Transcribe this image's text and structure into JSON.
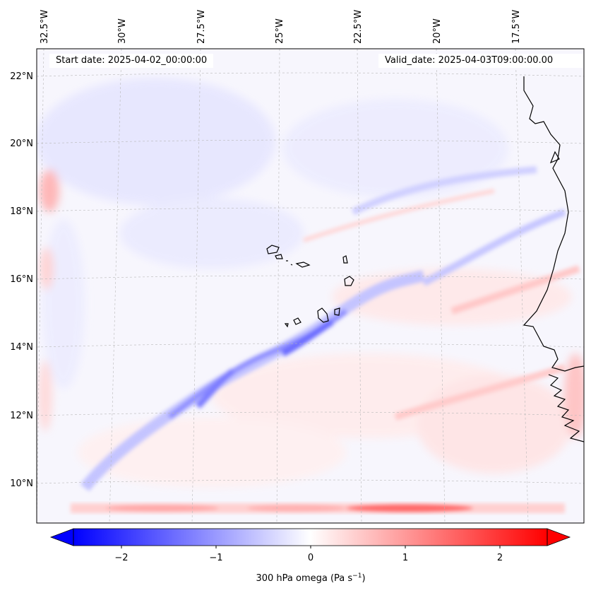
{
  "header": {
    "start_date": "Start date: 2025-04-02_00:00:00",
    "valid_date": "Valid_date: 2025-04-03T09:00:00.00"
  },
  "map": {
    "lon_labels": [
      "32.5°W",
      "30°W",
      "27.5°W",
      "25°W",
      "22.5°W",
      "20°W",
      "17.5°W"
    ],
    "lat_labels": [
      "22°N",
      "20°N",
      "18°N",
      "16°N",
      "14°N",
      "12°N",
      "10°N"
    ],
    "field": "300 hPa omega",
    "description_colors": {
      "negative": "#0000ff",
      "neutral": "#ffffff",
      "positive": "#ff0000"
    }
  },
  "colorbar": {
    "ticks": [
      "−2",
      "−1",
      "0",
      "1",
      "2"
    ],
    "label": "300 hPa omega (Pa s",
    "label_sup": "−1",
    "label_end": ")"
  }
}
